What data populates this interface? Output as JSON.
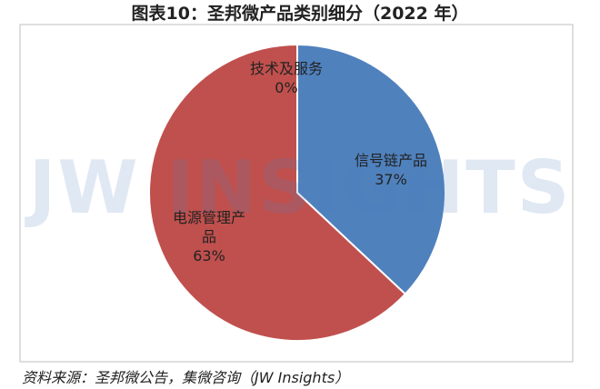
{
  "chart_data": {
    "type": "pie",
    "title": "图表10：圣邦微产品类别细分（2022 年）",
    "categories": [
      "技术及服务",
      "信号链产品",
      "电源管理产品"
    ],
    "values": [
      0,
      37,
      63
    ],
    "value_labels": [
      "0%",
      "37%",
      "63%"
    ],
    "colors": [
      "#9bbb59",
      "#4f81bd",
      "#c0504d"
    ],
    "watermark": "JW INSIGHTS",
    "source": "资料来源：圣邦微公告，集微咨询（JW Insights）"
  }
}
